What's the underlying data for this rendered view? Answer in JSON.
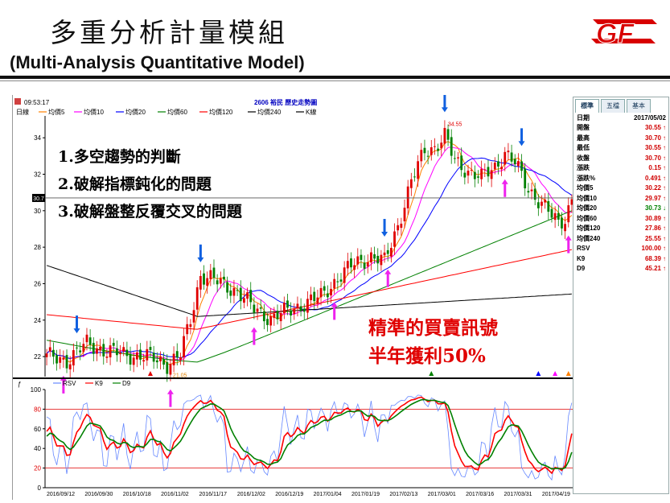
{
  "slide": {
    "title": "多重分析計量模組",
    "subtitle": "(Multi-Analysis Quantitative Model)",
    "logo_text": "GF"
  },
  "window": {
    "time": "09:53:17",
    "chart_title": "2606 裕民  歷史走勢圖",
    "period": "日線",
    "ma_legend": [
      "均價5",
      "均價10",
      "均價20",
      "均價60",
      "均價120",
      "均價240",
      "K線"
    ],
    "ma_colors": [
      "#ff8000",
      "#ff00ff",
      "#0000ff",
      "#008000",
      "#ff0000",
      "#000000"
    ],
    "osc_legend": [
      "RSV",
      "K9",
      "D9"
    ],
    "osc_colors": [
      "#6688ff",
      "#ff0000",
      "#008000"
    ]
  },
  "callouts": {
    "points": [
      "1.多空趨勢的判斷",
      "2.破解指標鈍化的問題",
      "3.破解盤整反覆交叉的問題"
    ],
    "signal_line1": "精準的買賣訊號",
    "signal_line2": "半年獲利50%"
  },
  "panel": {
    "tabs": [
      "標準",
      "五檔",
      "基本"
    ],
    "rows": [
      {
        "label": "日期",
        "value": "2017/05/02",
        "trend": ""
      },
      {
        "label": "開盤",
        "value": "30.55",
        "trend": "up"
      },
      {
        "label": "最高",
        "value": "30.70",
        "trend": "up"
      },
      {
        "label": "最低",
        "value": "30.55",
        "trend": "up"
      },
      {
        "label": "收盤",
        "value": "30.70",
        "trend": "up"
      },
      {
        "label": "漲跌",
        "value": "0.15",
        "trend": "up"
      },
      {
        "label": "漲跌%",
        "value": "0.491",
        "trend": "up"
      },
      {
        "label": "均價5",
        "value": "30.22",
        "trend": "up"
      },
      {
        "label": "均價10",
        "value": "29.97",
        "trend": "up"
      },
      {
        "label": "均價20",
        "value": "30.73",
        "trend": "down"
      },
      {
        "label": "均價60",
        "value": "30.89",
        "trend": "up"
      },
      {
        "label": "均價120",
        "value": "27.86",
        "trend": "up"
      },
      {
        "label": "均價240",
        "value": "25.55",
        "trend": "up"
      },
      {
        "label": "RSV",
        "value": "100.00",
        "trend": "up"
      },
      {
        "label": "K9",
        "value": "68.39",
        "trend": "up"
      },
      {
        "label": "D9",
        "value": "45.21",
        "trend": "up"
      }
    ],
    "arrow_up": "↑",
    "arrow_down": "↓"
  },
  "chart_data": [
    {
      "type": "candlestick",
      "price_ticks": [
        22,
        24,
        26,
        28,
        30,
        32,
        34
      ],
      "ylim": [
        20.9,
        35.2
      ],
      "current_price_label": "30.7",
      "annotations": [
        {
          "text": "34.55",
          "type": "high"
        },
        {
          "text": "21.05",
          "type": "low"
        }
      ],
      "x_dates": [
        "2016/09/12",
        "2016/09/30",
        "2016/10/18",
        "2016/11/02",
        "2016/11/17",
        "2016/12/02",
        "2016/12/19",
        "2017/01/04",
        "2017/01/19",
        "2017/02/13",
        "2017/03/01",
        "2017/03/16",
        "2017/03/31",
        "2017/04/19"
      ],
      "close_anchors": [
        [
          0,
          22.0
        ],
        [
          6,
          21.8
        ],
        [
          12,
          22.7
        ],
        [
          18,
          22.3
        ],
        [
          24,
          22.1
        ],
        [
          30,
          22.0
        ],
        [
          36,
          21.6
        ],
        [
          40,
          22.1
        ],
        [
          43,
          24.0
        ],
        [
          46,
          26.5
        ],
        [
          49,
          26.3
        ],
        [
          53,
          25.9
        ],
        [
          57,
          25.6
        ],
        [
          62,
          24.6
        ],
        [
          67,
          24.1
        ],
        [
          72,
          24.5
        ],
        [
          77,
          24.9
        ],
        [
          82,
          25.3
        ],
        [
          87,
          26.3
        ],
        [
          92,
          27.1
        ],
        [
          97,
          27.5
        ],
        [
          101,
          27.2
        ],
        [
          105,
          29.2
        ],
        [
          109,
          31.6
        ],
        [
          113,
          33.3
        ],
        [
          116,
          33.5
        ],
        [
          119,
          34.1
        ],
        [
          122,
          32.7
        ],
        [
          126,
          32.2
        ],
        [
          130,
          31.8
        ],
        [
          134,
          32.4
        ],
        [
          137,
          33.2
        ],
        [
          140,
          32.6
        ],
        [
          144,
          31.2
        ],
        [
          148,
          30.4
        ],
        [
          151,
          29.7
        ],
        [
          153,
          29.3
        ],
        [
          155,
          29.6
        ],
        [
          157,
          30.7
        ]
      ],
      "buy_signals": [
        5,
        37,
        62,
        86,
        102,
        137,
        156
      ],
      "sell_signals": [
        9,
        46,
        101,
        119,
        142
      ]
    },
    {
      "type": "line",
      "series": [
        {
          "name": "RSV"
        },
        {
          "name": "K9"
        },
        {
          "name": "D9"
        }
      ],
      "y_ticks": [
        0,
        20,
        40,
        60,
        80,
        100
      ],
      "ylim": [
        0,
        100
      ],
      "reference_lines": [
        20,
        80
      ]
    }
  ]
}
